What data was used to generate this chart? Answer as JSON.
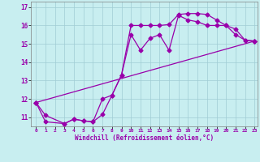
{
  "xlabel": "Windchill (Refroidissement éolien,°C)",
  "bg_color": "#c8eef0",
  "line_color": "#9900aa",
  "grid_color": "#a0ccd4",
  "xlim": [
    -0.5,
    23.3
  ],
  "ylim": [
    10.5,
    17.3
  ],
  "yticks": [
    11,
    12,
    13,
    14,
    15,
    16,
    17
  ],
  "xticks": [
    0,
    1,
    2,
    3,
    4,
    5,
    6,
    7,
    8,
    9,
    10,
    11,
    12,
    13,
    14,
    15,
    16,
    17,
    18,
    19,
    20,
    21,
    22,
    23
  ],
  "line1_x": [
    0,
    1,
    3,
    4,
    5,
    6,
    7,
    8,
    9,
    10,
    11,
    12,
    13,
    14,
    15,
    16,
    17,
    18,
    19,
    20,
    21,
    22,
    23
  ],
  "line1_y": [
    11.8,
    10.75,
    10.65,
    10.9,
    10.8,
    10.75,
    12.0,
    12.2,
    13.3,
    16.0,
    16.0,
    16.0,
    16.0,
    16.05,
    16.6,
    16.65,
    16.65,
    16.6,
    16.3,
    16.0,
    15.5,
    15.2,
    15.15
  ],
  "line2_x": [
    0,
    1,
    3,
    4,
    5,
    6,
    7,
    8,
    9,
    10,
    11,
    12,
    13,
    14,
    15,
    16,
    17,
    18,
    19,
    20,
    21,
    22,
    23
  ],
  "line2_y": [
    11.8,
    11.1,
    10.65,
    10.9,
    10.8,
    10.75,
    11.15,
    12.2,
    13.3,
    15.5,
    14.65,
    15.3,
    15.5,
    14.65,
    16.55,
    16.3,
    16.2,
    16.0,
    16.0,
    16.0,
    15.8,
    15.2,
    15.15
  ],
  "line3_x": [
    0,
    23
  ],
  "line3_y": [
    11.8,
    15.15
  ]
}
